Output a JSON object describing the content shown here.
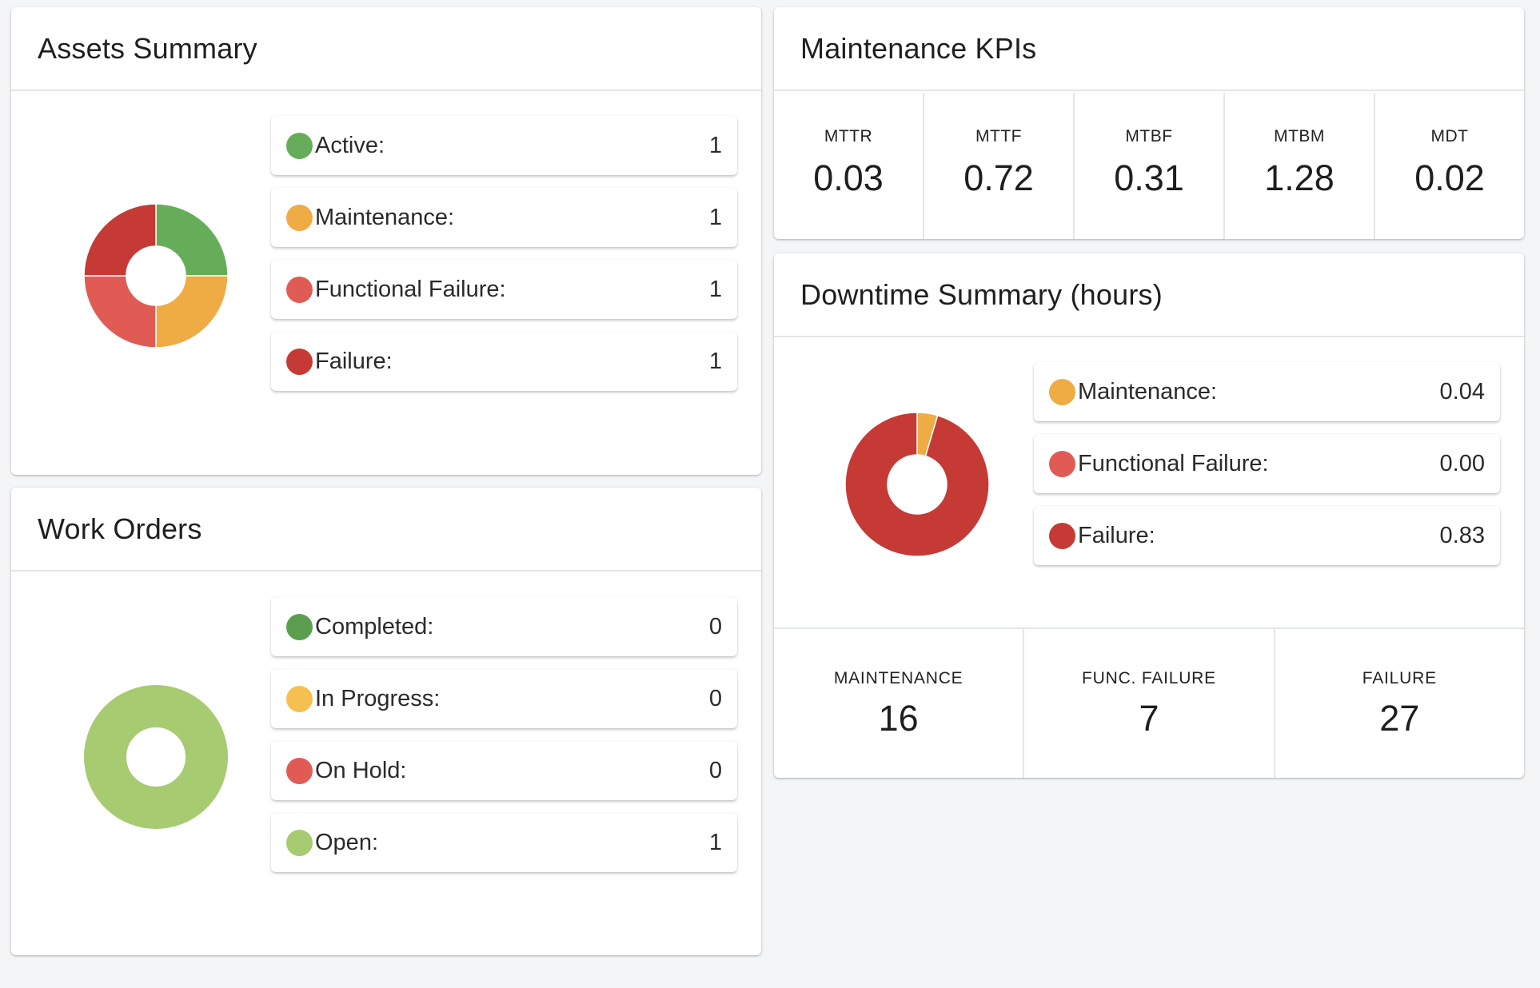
{
  "assets_summary": {
    "title": "Assets Summary",
    "items": [
      {
        "label": "Active:",
        "value": "1",
        "color": "#66ad5a"
      },
      {
        "label": "Maintenance:",
        "value": "1",
        "color": "#efab44"
      },
      {
        "label": "Functional Failure:",
        "value": "1",
        "color": "#e15b55"
      },
      {
        "label": "Failure:",
        "value": "1",
        "color": "#c53a35"
      }
    ]
  },
  "work_orders": {
    "title": "Work Orders",
    "items": [
      {
        "label": "Completed:",
        "value": "0",
        "color": "#5b9f4e"
      },
      {
        "label": "In Progress:",
        "value": "0",
        "color": "#f5c04f"
      },
      {
        "label": "On Hold:",
        "value": "0",
        "color": "#e15b55"
      },
      {
        "label": "Open:",
        "value": "1",
        "color": "#a6cb70"
      }
    ]
  },
  "maintenance_kpis": {
    "title": "Maintenance KPIs",
    "items": [
      {
        "label": "MTTR",
        "value": "0.03"
      },
      {
        "label": "MTTF",
        "value": "0.72"
      },
      {
        "label": "MTBF",
        "value": "0.31"
      },
      {
        "label": "MTBM",
        "value": "1.28"
      },
      {
        "label": "MDT",
        "value": "0.02"
      }
    ]
  },
  "downtime_summary": {
    "title": "Downtime Summary (hours)",
    "items": [
      {
        "label": "Maintenance:",
        "value": "0.04",
        "color": "#efab44"
      },
      {
        "label": "Functional Failure:",
        "value": "0.00",
        "color": "#e15b55"
      },
      {
        "label": "Failure:",
        "value": "0.83",
        "color": "#c53a35"
      }
    ],
    "counts": [
      {
        "label": "MAINTENANCE",
        "value": "16"
      },
      {
        "label": "FUNC. FAILURE",
        "value": "7"
      },
      {
        "label": "FAILURE",
        "value": "27"
      }
    ]
  },
  "chart_data": [
    {
      "type": "pie",
      "categories": [
        "Active",
        "Maintenance",
        "Functional Failure",
        "Failure"
      ],
      "values": [
        1,
        1,
        1,
        1
      ],
      "colors": [
        "#66ad5a",
        "#efab44",
        "#e15b55",
        "#c53a35"
      ]
    },
    {
      "type": "pie",
      "categories": [
        "Completed",
        "In Progress",
        "On Hold",
        "Open"
      ],
      "values": [
        0,
        0,
        0,
        1
      ],
      "colors": [
        "#5b9f4e",
        "#f5c04f",
        "#e15b55",
        "#a6cb70"
      ]
    },
    {
      "type": "pie",
      "categories": [
        "Maintenance",
        "Functional Failure",
        "Failure"
      ],
      "values": [
        0.04,
        0.0,
        0.83
      ],
      "colors": [
        "#efab44",
        "#e15b55",
        "#c53a35"
      ]
    }
  ]
}
